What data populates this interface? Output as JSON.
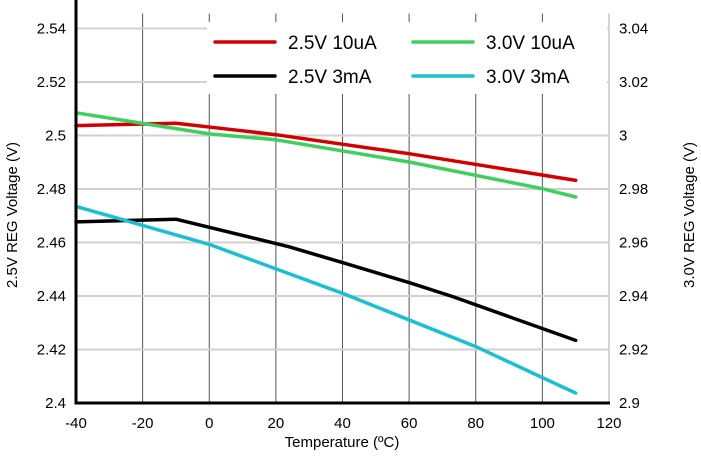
{
  "chart_data": {
    "type": "line",
    "xlabel": "Temperature (ºC)",
    "ylabel": "2.5V REG Voltage (V)",
    "y2label": "3.0V REG Voltage (V)",
    "xlim": [
      -40,
      120
    ],
    "ylim": [
      2.4,
      2.54
    ],
    "y2lim": [
      2.9,
      3.04
    ],
    "xticks": [
      "-40",
      "-20",
      "0",
      "20",
      "40",
      "60",
      "80",
      "100",
      "120"
    ],
    "yticks": [
      "2.4",
      "2.42",
      "2.44",
      "2.46",
      "2.48",
      "2.5",
      "2.52",
      "2.54"
    ],
    "y2ticks": [
      "2.9",
      "2.92",
      "2.94",
      "2.96",
      "2.98",
      "3",
      "3.02",
      "3.04"
    ],
    "grid": true,
    "legend_placement": "top-right",
    "series": [
      {
        "name": "2.5V 10uA",
        "axis": "left",
        "color": "#d40000",
        "x": [
          -40,
          -10,
          20,
          60,
          110
        ],
        "y": [
          2.5037,
          2.5046,
          2.5003,
          2.4932,
          2.4832
        ]
      },
      {
        "name": "3.0V 10uA",
        "axis": "right",
        "color": "#3ecf5f",
        "x": [
          -40,
          0,
          20,
          60,
          100,
          110
        ],
        "y": [
          3.0085,
          3.0006,
          2.9984,
          2.9901,
          2.9801,
          2.977
        ]
      },
      {
        "name": "2.5V 3mA",
        "axis": "left",
        "color": "#000000",
        "x": [
          -40,
          -10,
          24,
          40,
          60,
          73,
          110
        ],
        "y": [
          2.4677,
          2.4687,
          2.4584,
          2.4525,
          2.445,
          2.4398,
          2.4234
        ]
      },
      {
        "name": "3.0V 3mA",
        "axis": "right",
        "color": "#1bbfd2",
        "x": [
          -40,
          0,
          40,
          80,
          110
        ],
        "y": [
          2.9735,
          2.9593,
          2.941,
          2.9211,
          2.9037
        ]
      }
    ]
  }
}
